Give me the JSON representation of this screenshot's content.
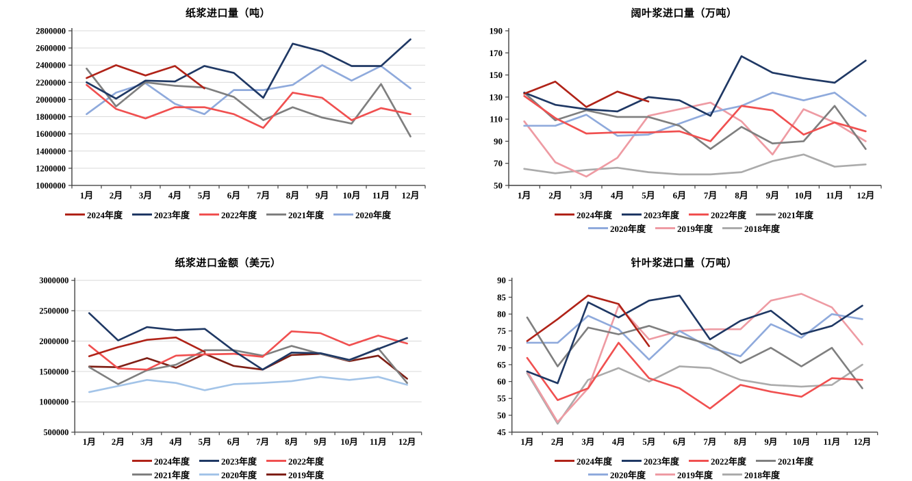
{
  "page": {
    "background": "#FFFFFF"
  },
  "chart_data": [
    {
      "type": "line",
      "title": "纸浆进口量（吨）",
      "categories": [
        "1月",
        "2月",
        "3月",
        "4月",
        "5月",
        "6月",
        "7月",
        "8月",
        "9月",
        "10月",
        "11月",
        "12月"
      ],
      "ylim": [
        1000000,
        2800000
      ],
      "y_step": 200000,
      "grid": true,
      "legend_position": "bottom",
      "legend_per_row": 5,
      "series": [
        {
          "name": "2024年度",
          "color": "#B02318",
          "values": [
            2250000,
            2400000,
            2280000,
            2390000,
            2130000,
            null,
            null,
            null,
            null,
            null,
            null,
            null
          ]
        },
        {
          "name": "2023年度",
          "color": "#1F3864",
          "values": [
            2200000,
            2010000,
            2220000,
            2210000,
            2390000,
            2310000,
            2020000,
            2650000,
            2560000,
            2390000,
            2390000,
            2700000
          ]
        },
        {
          "name": "2022年度",
          "color": "#F05050",
          "values": [
            2170000,
            1890000,
            1780000,
            1910000,
            1910000,
            1830000,
            1670000,
            2080000,
            2020000,
            1760000,
            1900000,
            1830000
          ]
        },
        {
          "name": "2021年度",
          "color": "#7F7F7F",
          "values": [
            2360000,
            1920000,
            2200000,
            2160000,
            2140000,
            2030000,
            1760000,
            1910000,
            1790000,
            1720000,
            2180000,
            1570000
          ]
        },
        {
          "name": "2020年度",
          "color": "#8FAADC",
          "values": [
            1830000,
            2080000,
            2190000,
            1950000,
            1830000,
            2110000,
            2110000,
            2170000,
            2400000,
            2220000,
            2390000,
            2130000
          ]
        }
      ]
    },
    {
      "type": "line",
      "title": "阔叶浆进口量（万吨）",
      "categories": [
        "1月",
        "2月",
        "3月",
        "4月",
        "5月",
        "6月",
        "7月",
        "8月",
        "9月",
        "10月",
        "11月",
        "12月"
      ],
      "ylim": [
        50,
        190
      ],
      "y_step": 20,
      "grid": false,
      "legend_position": "bottom",
      "legend_per_row": 4,
      "series": [
        {
          "name": "2024年度",
          "color": "#B02318",
          "values": [
            133,
            144,
            121,
            135,
            126,
            null,
            null,
            null,
            null,
            null,
            null,
            null
          ]
        },
        {
          "name": "2023年度",
          "color": "#1F3864",
          "values": [
            134,
            123,
            119,
            117,
            130,
            127,
            113,
            167,
            152,
            147,
            143,
            163
          ]
        },
        {
          "name": "2022年度",
          "color": "#F05050",
          "values": [
            131,
            111,
            97,
            98,
            98,
            99,
            90,
            122,
            118,
            96,
            107,
            99
          ]
        },
        {
          "name": "2021年度",
          "color": "#7F7F7F",
          "values": [
            134,
            109,
            118,
            112,
            112,
            104,
            83,
            103,
            88,
            90,
            122,
            83
          ]
        },
        {
          "name": "2020年度",
          "color": "#8FAADC",
          "values": [
            104,
            104,
            114,
            95,
            96,
            106,
            116,
            122,
            134,
            127,
            134,
            113
          ]
        },
        {
          "name": "2019年度",
          "color": "#EE9BA3",
          "values": [
            108,
            71,
            58,
            75,
            113,
            119,
            125,
            108,
            78,
            119,
            107,
            90
          ]
        },
        {
          "name": "2018年度",
          "color": "#ABABAB",
          "values": [
            65,
            61,
            64,
            66,
            62,
            60,
            60,
            62,
            72,
            78,
            67,
            69
          ]
        }
      ]
    },
    {
      "type": "line",
      "title": "纸浆进口金额（美元）",
      "categories": [
        "1月",
        "2月",
        "3月",
        "4月",
        "5月",
        "6月",
        "7月",
        "8月",
        "9月",
        "10月",
        "11月",
        "12月"
      ],
      "ylim": [
        500000,
        3000000
      ],
      "y_step": 500000,
      "grid": true,
      "legend_position": "bottom",
      "legend_per_row": 3,
      "series": [
        {
          "name": "2024年度",
          "color": "#B02318",
          "values": [
            1750000,
            1900000,
            2020000,
            2060000,
            1820000,
            null,
            null,
            null,
            null,
            null,
            null,
            null
          ]
        },
        {
          "name": "2023年度",
          "color": "#1F3864",
          "values": [
            2460000,
            2010000,
            2230000,
            2180000,
            2200000,
            1840000,
            1530000,
            1810000,
            1800000,
            1690000,
            1870000,
            2050000
          ]
        },
        {
          "name": "2022年度",
          "color": "#F05050",
          "values": [
            1930000,
            1550000,
            1530000,
            1760000,
            1780000,
            1790000,
            1740000,
            2160000,
            2130000,
            1930000,
            2090000,
            1960000
          ]
        },
        {
          "name": "2021年度",
          "color": "#7F7F7F",
          "values": [
            1570000,
            1290000,
            1520000,
            1610000,
            1850000,
            1850000,
            1760000,
            1920000,
            1790000,
            1680000,
            1880000,
            1310000
          ]
        },
        {
          "name": "2020年度",
          "color": "#A3C4E8",
          "values": [
            1160000,
            1260000,
            1360000,
            1310000,
            1190000,
            1290000,
            1310000,
            1340000,
            1410000,
            1360000,
            1410000,
            1280000
          ]
        },
        {
          "name": "2019年度",
          "color": "#7E1F15",
          "values": [
            1580000,
            1570000,
            1720000,
            1560000,
            1790000,
            1590000,
            1530000,
            1770000,
            1790000,
            1670000,
            1760000,
            1380000
          ]
        }
      ]
    },
    {
      "type": "line",
      "title": "针叶浆进口量（万吨）",
      "categories": [
        "1月",
        "2月",
        "3月",
        "4月",
        "5月",
        "6月",
        "7月",
        "8月",
        "9月",
        "10月",
        "11月",
        "12月"
      ],
      "ylim": [
        45,
        90
      ],
      "y_step": 5,
      "grid": false,
      "legend_position": "bottom",
      "legend_per_row": 4,
      "series": [
        {
          "name": "2024年度",
          "color": "#B02318",
          "values": [
            72,
            78.5,
            85.5,
            83,
            70.5,
            null,
            null,
            null,
            null,
            null,
            null,
            null
          ]
        },
        {
          "name": "2023年度",
          "color": "#1F3864",
          "values": [
            63,
            59.5,
            83.5,
            79,
            84,
            85.5,
            72.5,
            78,
            81,
            74,
            76.5,
            82.5
          ]
        },
        {
          "name": "2022年度",
          "color": "#F05050",
          "values": [
            67,
            54.5,
            58,
            71.5,
            61,
            58,
            52,
            59,
            57,
            55.5,
            61,
            60.5
          ]
        },
        {
          "name": "2021年度",
          "color": "#7F7F7F",
          "values": [
            79,
            64.5,
            76,
            74,
            76.5,
            73.5,
            71,
            65.5,
            70,
            64.5,
            70,
            58
          ]
        },
        {
          "name": "2020年度",
          "color": "#8FAADC",
          "values": [
            71.5,
            71.5,
            79.5,
            75.5,
            66.5,
            75,
            70,
            67.5,
            77,
            73,
            80,
            78.5
          ]
        },
        {
          "name": "2019年度",
          "color": "#EE9BA3",
          "values": [
            63,
            48,
            58,
            82.5,
            72.5,
            75,
            75.5,
            75.5,
            84,
            86,
            82,
            71
          ]
        },
        {
          "name": "2018年度",
          "color": "#ABABAB",
          "values": [
            62.5,
            47.5,
            60.5,
            64,
            60,
            64.5,
            64,
            60.5,
            59,
            58.5,
            59,
            65
          ]
        }
      ]
    }
  ]
}
